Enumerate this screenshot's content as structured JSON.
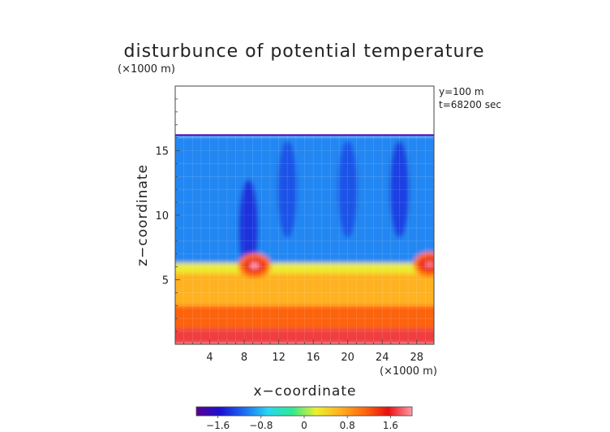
{
  "chart_data": {
    "type": "heatmap",
    "title": "disturbunce of potential temperature",
    "z_unit_label": "(×1000 m)",
    "x_unit_label": "(×1000 m)",
    "xlabel": "x−coordinate",
    "ylabel": "z−coordinate",
    "annotations": [
      "y=100 m",
      "t=68200 sec"
    ],
    "x_ticks": [
      "4",
      "8",
      "12",
      "16",
      "20",
      "24",
      "28"
    ],
    "x_tick_values": [
      4,
      8,
      12,
      16,
      20,
      24,
      28
    ],
    "y_ticks": [
      "5",
      "10",
      "15"
    ],
    "y_tick_values": [
      5,
      10,
      15
    ],
    "xlim": [
      0,
      30
    ],
    "ylim": [
      0,
      20
    ],
    "colorbar": {
      "range": [
        -2.0,
        2.0
      ],
      "ticks": [
        "−1.6",
        "−0.8",
        "0",
        "0.8",
        "1.6"
      ],
      "tick_values": [
        -1.6,
        -0.8,
        0,
        0.8,
        1.6
      ]
    },
    "field_top_z": 16.2,
    "layers": [
      {
        "z_from": 0,
        "z_to": 1.2,
        "value": 1.7
      },
      {
        "z_from": 1.2,
        "z_to": 3,
        "value": 1.15
      },
      {
        "z_from": 3,
        "z_to": 5.5,
        "value": 0.65
      },
      {
        "z_from": 5.5,
        "z_to": 6.3,
        "value": 0.25
      },
      {
        "z_from": 6.3,
        "z_to": 16.2,
        "value": -1.0
      }
    ],
    "warm_bubbles": [
      {
        "x": 9.2,
        "z": 6.1,
        "value": 2.0
      },
      {
        "x": 29.5,
        "z": 6.2,
        "value": 1.9
      }
    ],
    "cold_plumes": [
      {
        "x": 8.5,
        "z": 9,
        "value": -1.5
      },
      {
        "x": 13,
        "z": 12,
        "value": -1.3
      },
      {
        "x": 20,
        "z": 12,
        "value": -1.3
      },
      {
        "x": 26,
        "z": 12,
        "value": -1.4
      }
    ]
  },
  "colors": {
    "scale": [
      "#5a0091",
      "#1a10d2",
      "#1e6cf2",
      "#2ad7f0",
      "#30e890",
      "#eaf030",
      "#ffb020",
      "#ff6a10",
      "#e81010",
      "#ff9aa8"
    ]
  }
}
